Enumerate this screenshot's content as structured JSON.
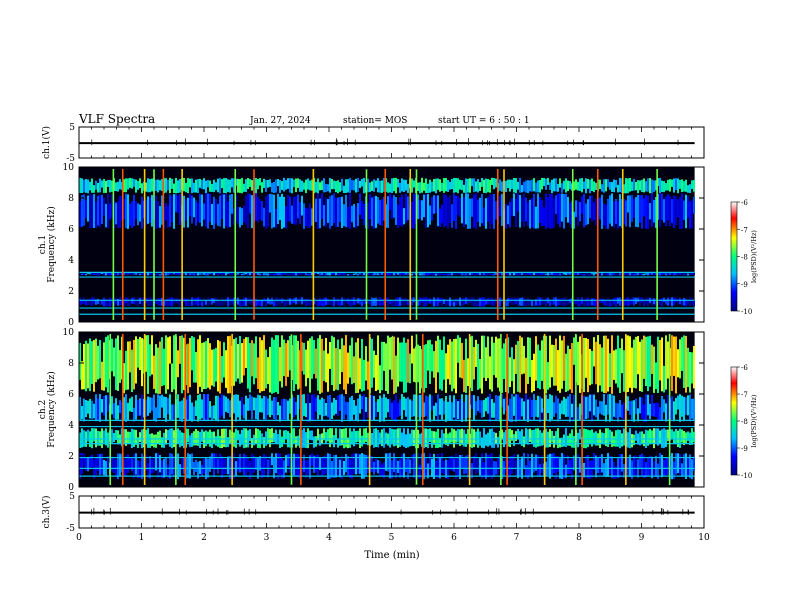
{
  "header": {
    "title": "VLF Spectra",
    "date": "Jan. 27, 2024",
    "station": "station= MOS",
    "start_ut": "start UT =  6 : 50 : 1"
  },
  "chart_data": [
    {
      "type": "line",
      "id": "ch1-voltage",
      "ylabel": "ch.1(V)",
      "ylim": [
        -5,
        5
      ],
      "yticks": [
        5,
        -5
      ],
      "xlim": [
        0,
        10
      ],
      "series": [
        {
          "x": [
            0,
            9.85
          ],
          "y": [
            -0.2,
            -0.2
          ]
        }
      ]
    },
    {
      "type": "heatmap",
      "id": "ch1-spectrogram",
      "ylabel": "ch.1 Frequency (kHz)",
      "xlim": [
        0,
        9.85
      ],
      "ylim": [
        0,
        10
      ],
      "yticks": [
        0,
        2,
        4,
        6,
        8,
        10
      ],
      "zlabel": "log(PSD)(V²/Hz)",
      "zlim": [
        -10,
        -6
      ],
      "zticks": [
        -6,
        -7,
        -8,
        -9,
        -10
      ],
      "colormap": [
        "#000080",
        "#0000ff",
        "#00c0ff",
        "#00ff80",
        "#ffff00",
        "#ff0000",
        "#ffffff"
      ],
      "bands": [
        {
          "f0": 8.3,
          "f1": 9.3,
          "level": -8.4
        },
        {
          "f0": 6.0,
          "f1": 8.3,
          "level": -9.2
        },
        {
          "f0": 3.0,
          "f1": 3.2,
          "level": -9.3
        },
        {
          "f0": 1.0,
          "f1": 1.6,
          "level": -9.6
        }
      ],
      "lines_khz": [
        0.5,
        0.9,
        1.4,
        2.9,
        3.2
      ],
      "impulses_min": [
        0.55,
        0.7,
        1.05,
        1.2,
        1.35,
        1.65,
        2.5,
        2.8,
        3.75,
        4.6,
        4.9,
        5.3,
        5.4,
        6.7,
        6.8,
        7.9,
        8.3,
        8.7,
        9.25
      ]
    },
    {
      "type": "heatmap",
      "id": "ch2-spectrogram",
      "ylabel": "ch.2 Frequency (kHz)",
      "xlim": [
        0,
        9.85
      ],
      "ylim": [
        0,
        10
      ],
      "yticks": [
        0,
        2,
        4,
        6,
        8,
        10
      ],
      "zlabel": "log(PSD)(V²/Hz)",
      "zlim": [
        -10,
        -6
      ],
      "zticks": [
        -6,
        -7,
        -8,
        -9,
        -10
      ],
      "colormap": [
        "#000080",
        "#0000ff",
        "#00c0ff",
        "#00ff80",
        "#ffff00",
        "#ff0000",
        "#ffffff"
      ],
      "bands": [
        {
          "f0": 6.0,
          "f1": 9.8,
          "level": -7.6
        },
        {
          "f0": 4.2,
          "f1": 6.0,
          "level": -8.8
        },
        {
          "f0": 2.5,
          "f1": 3.8,
          "level": -8.2
        },
        {
          "f0": 0.5,
          "f1": 2.2,
          "level": -9.2
        }
      ],
      "lines_khz": [
        0.7,
        1.2,
        1.9,
        2.8,
        3.1,
        3.9,
        4.3
      ],
      "impulses_min": [
        0.5,
        0.7,
        1.05,
        1.55,
        1.7,
        2.45,
        3.4,
        3.55,
        4.65,
        5.4,
        5.5,
        6.25,
        6.75,
        6.85,
        7.45,
        7.95,
        8.05,
        8.75,
        9.45
      ]
    },
    {
      "type": "line",
      "id": "ch3-voltage",
      "ylabel": "ch.3(V)",
      "ylim": [
        -5,
        5
      ],
      "yticks": [
        5,
        -5
      ],
      "xlim": [
        0,
        10
      ],
      "xlabel": "Time (min)",
      "xticks": [
        0,
        1,
        2,
        3,
        4,
        5,
        6,
        7,
        8,
        9,
        10
      ],
      "series": [
        {
          "x": [
            0,
            9.85
          ],
          "y": [
            -0.2,
            -0.2
          ]
        }
      ]
    }
  ]
}
